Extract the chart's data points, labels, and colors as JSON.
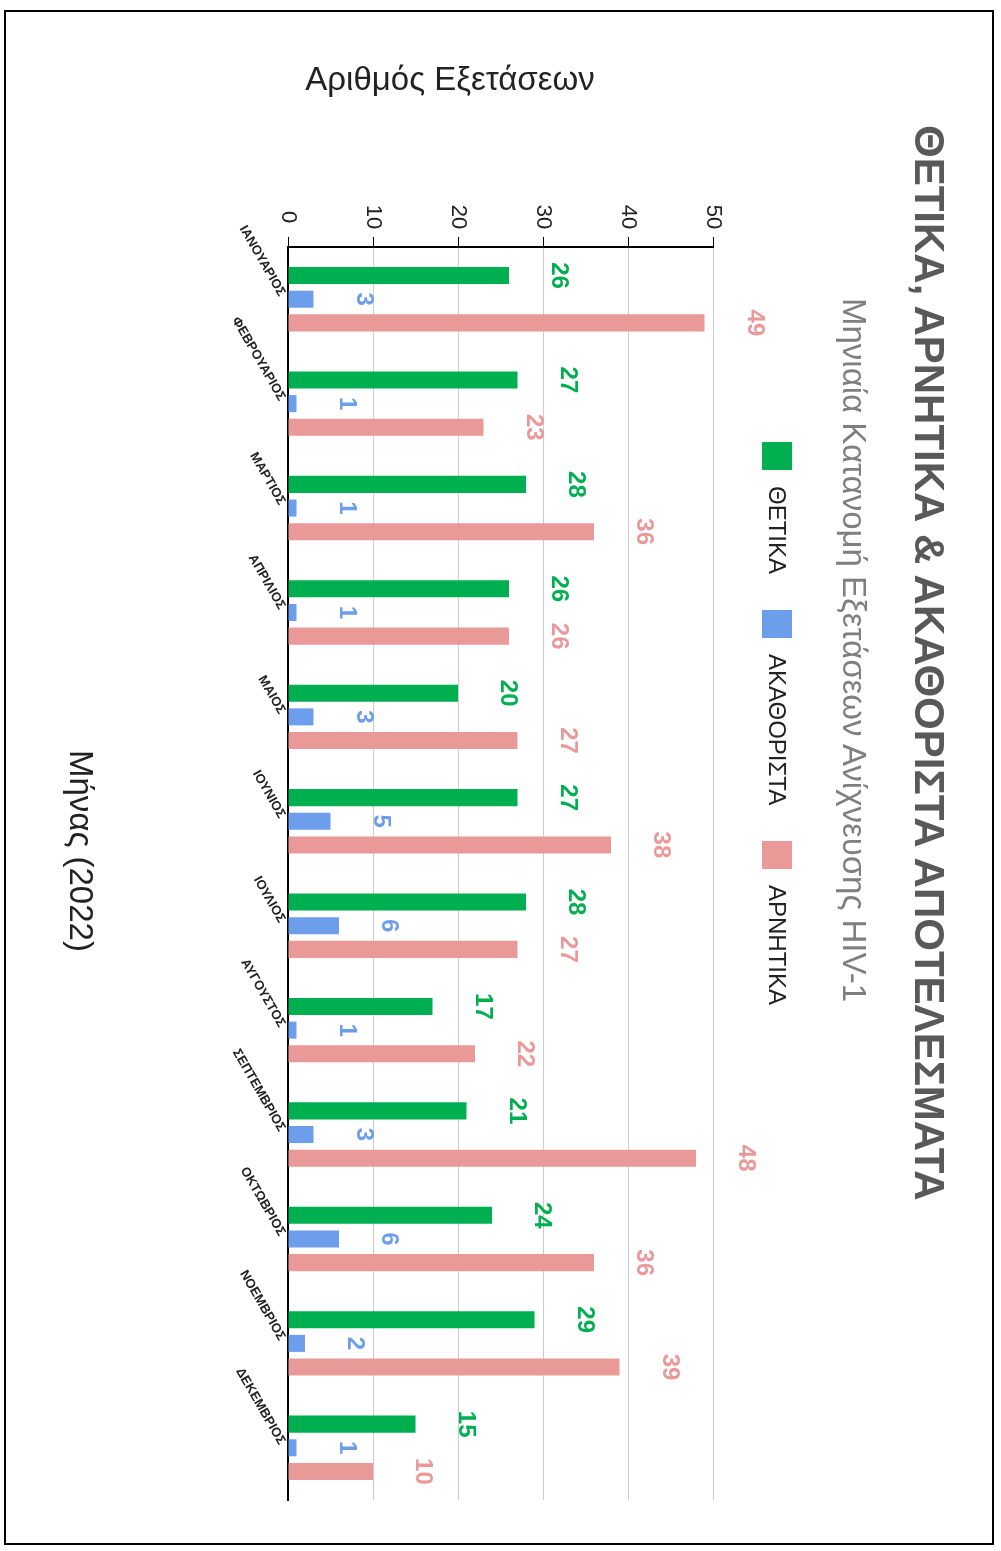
{
  "chart_data": {
    "type": "bar",
    "orientation": "horizontal",
    "title": "ΘΕΤΙΚΑ, ΑΡΝΗΤΙΚΑ & ΑΚΑΘΟΡΙΣΤΑ ΑΠΟΤΕΛΕΣΜΑΤΑ",
    "subtitle": "Μηνιαία Κατανομή Εξετάσεων Ανίχνευσης HIV-1",
    "xlabel": "Αριθμός Εξετάσεων",
    "ylabel": "Μήνας (2022)",
    "categories": [
      "ΙΑΝΟΥΑΡΙΟΣ",
      "ΦΕΒΡΟΥΑΡΙΟΣ",
      "ΜΑΡΤΙΟΣ",
      "ΑΠΡΙΛΙΟΣ",
      "ΜΑΙΟΣ",
      "ΙΟΥΝΙΟΣ",
      "ΙΟΥΛΙΟΣ",
      "ΑΥΓΟΥΣΤΟΣ",
      "ΣΕΠΤΕΜΒΡΙΟΣ",
      "ΟΚΤΩΒΡΙΟΣ",
      "ΝΟΕΜΒΡΙΟΣ",
      "ΔΕΚΕΜΒΡΙΟΣ"
    ],
    "series": [
      {
        "name": "ΘΕΤΙΚΑ",
        "color": "#00b050",
        "values": [
          26,
          27,
          28,
          26,
          20,
          27,
          28,
          17,
          21,
          24,
          29,
          15
        ]
      },
      {
        "name": "ΑΚΑΘΟΡΙΣΤΑ",
        "color": "#6d9eeb",
        "values": [
          3,
          1,
          1,
          1,
          3,
          5,
          6,
          1,
          3,
          6,
          2,
          1
        ]
      },
      {
        "name": "ΑΡΝΗΤΙΚΑ",
        "color": "#ea9999",
        "values": [
          49,
          23,
          36,
          26,
          27,
          38,
          27,
          22,
          48,
          36,
          39,
          10
        ]
      }
    ],
    "xlim": [
      0,
      50
    ],
    "xticks": [
      0,
      10,
      20,
      30,
      40,
      50
    ],
    "grid": "x",
    "legend": "right",
    "data_labels": true
  }
}
